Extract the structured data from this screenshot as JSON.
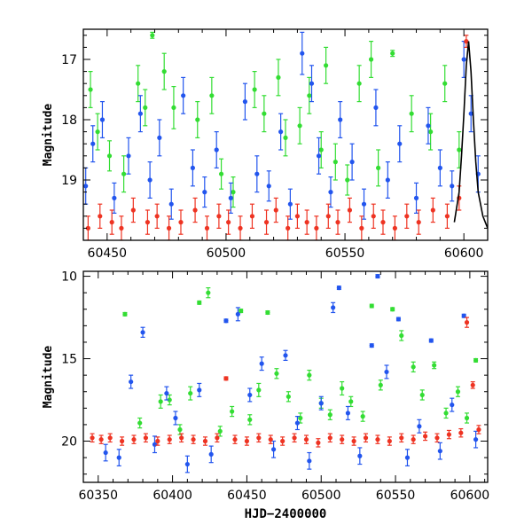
{
  "chart_data": [
    {
      "type": "scatter",
      "title": "",
      "xlabel": "",
      "ylabel": "Magnitude",
      "xlim": [
        60440,
        60610
      ],
      "ylim": [
        20.0,
        16.5
      ],
      "y_inverted": true,
      "grid": false,
      "legend": "none",
      "xticks": [
        60450,
        60500,
        60550,
        60600
      ],
      "yticks": [
        17,
        18,
        19
      ],
      "series": [
        {
          "color": "#33dd33",
          "x": [
            60443,
            60446,
            60451,
            60457,
            60463,
            60466,
            60469,
            60474,
            60478,
            60488,
            60494,
            60498,
            60503,
            60512,
            60516,
            60522,
            60525,
            60531,
            60535,
            60540,
            60542,
            60546,
            60551,
            60556,
            60561,
            60564,
            60570,
            60578,
            60586,
            60592,
            60598
          ],
          "y": [
            17.5,
            18.2,
            18.6,
            18.9,
            17.4,
            17.8,
            16.6,
            17.2,
            17.8,
            18.0,
            17.6,
            18.9,
            19.2,
            17.5,
            17.9,
            17.3,
            18.3,
            18.1,
            17.6,
            18.5,
            17.1,
            18.7,
            19.0,
            17.4,
            17.0,
            18.8,
            16.9,
            17.9,
            18.2,
            17.4,
            18.5
          ],
          "err": [
            0.3,
            0.3,
            0.25,
            0.3,
            0.3,
            0.3,
            0.05,
            0.3,
            0.35,
            0.3,
            0.3,
            0.25,
            0.25,
            0.3,
            0.3,
            0.3,
            0.3,
            0.3,
            0.3,
            0.3,
            0.3,
            0.3,
            0.25,
            0.3,
            0.3,
            0.3,
            0.05,
            0.3,
            0.3,
            0.3,
            0.3
          ]
        },
        {
          "color": "#2255ee",
          "x": [
            60441,
            60444,
            60448,
            60453,
            60459,
            60464,
            60468,
            60472,
            60477,
            60482,
            60486,
            60491,
            60496,
            60502,
            60508,
            60513,
            60518,
            60523,
            60527,
            60532,
            60536,
            60539,
            60544,
            60548,
            60553,
            60558,
            60563,
            60568,
            60573,
            60580,
            60585,
            60590,
            60595,
            60600,
            60603,
            60606
          ],
          "y": [
            19.1,
            18.4,
            18.0,
            19.3,
            18.6,
            17.9,
            19.0,
            18.3,
            19.4,
            17.6,
            18.8,
            19.2,
            18.5,
            19.3,
            17.7,
            18.9,
            19.1,
            18.2,
            19.4,
            16.9,
            17.4,
            18.6,
            19.2,
            18.0,
            18.7,
            19.4,
            17.8,
            19.0,
            18.4,
            19.3,
            18.1,
            18.8,
            19.1,
            17.0,
            17.9,
            18.9
          ],
          "err": [
            0.3,
            0.3,
            0.3,
            0.25,
            0.3,
            0.3,
            0.3,
            0.3,
            0.25,
            0.3,
            0.3,
            0.25,
            0.3,
            0.25,
            0.3,
            0.3,
            0.25,
            0.3,
            0.25,
            0.35,
            0.3,
            0.3,
            0.25,
            0.3,
            0.3,
            0.25,
            0.3,
            0.3,
            0.3,
            0.25,
            0.3,
            0.3,
            0.25,
            0.3,
            0.3,
            0.3
          ]
        },
        {
          "color": "#ee3322",
          "x": [
            60442,
            60447,
            60452,
            60456,
            60461,
            60467,
            60471,
            60476,
            60481,
            60487,
            60492,
            60497,
            60501,
            60506,
            60511,
            60517,
            60521,
            60526,
            60530,
            60534,
            60538,
            60543,
            60547,
            60552,
            60557,
            60562,
            60566,
            60571,
            60576,
            60581,
            60587,
            60593,
            60598,
            60601
          ],
          "y": [
            19.8,
            19.6,
            19.7,
            19.8,
            19.5,
            19.7,
            19.6,
            19.8,
            19.7,
            19.5,
            19.8,
            19.6,
            19.7,
            19.8,
            19.6,
            19.7,
            19.5,
            19.8,
            19.6,
            19.7,
            19.8,
            19.6,
            19.7,
            19.5,
            19.8,
            19.6,
            19.7,
            19.8,
            19.6,
            19.7,
            19.5,
            19.6,
            19.3,
            16.7
          ],
          "err": [
            0.2,
            0.2,
            0.2,
            0.2,
            0.2,
            0.2,
            0.2,
            0.2,
            0.2,
            0.2,
            0.2,
            0.2,
            0.2,
            0.2,
            0.2,
            0.2,
            0.2,
            0.2,
            0.2,
            0.2,
            0.2,
            0.2,
            0.2,
            0.2,
            0.2,
            0.2,
            0.2,
            0.2,
            0.2,
            0.2,
            0.2,
            0.2,
            0.2,
            0.1
          ]
        }
      ],
      "model_curve": {
        "color": "#000000",
        "x": [
          60596,
          60598,
          60599,
          60600,
          60601,
          60602,
          60603,
          60604,
          60605,
          60606,
          60608,
          60610
        ],
        "y": [
          19.7,
          19.2,
          18.6,
          17.9,
          17.1,
          16.7,
          17.2,
          18.0,
          18.7,
          19.2,
          19.6,
          19.8
        ]
      }
    },
    {
      "type": "scatter",
      "title": "",
      "xlabel": "HJD−2400000",
      "ylabel": "Magnitude",
      "xlim": [
        60340,
        60612
      ],
      "ylim": [
        22.5,
        9.7
      ],
      "y_inverted": true,
      "grid": false,
      "legend": "none",
      "xticks": [
        60350,
        60400,
        60450,
        60500,
        60550,
        60600
      ],
      "yticks": [
        10,
        15,
        20
      ],
      "series": [
        {
          "color": "#33dd33",
          "x": [
            60368,
            60378,
            60392,
            60398,
            60405,
            60412,
            60418,
            60424,
            60432,
            60440,
            60446,
            60452,
            60458,
            60464,
            60470,
            60478,
            60486,
            60492,
            60500,
            60506,
            60514,
            60520,
            60528,
            60534,
            60540,
            60548,
            60554,
            60562,
            60568,
            60576,
            60584,
            60592,
            60598,
            60604
          ],
          "y": [
            12.3,
            18.9,
            17.6,
            17.5,
            19.3,
            17.1,
            11.6,
            11.0,
            19.4,
            18.2,
            12.1,
            18.7,
            16.9,
            12.2,
            15.9,
            17.3,
            18.6,
            16.0,
            17.7,
            18.4,
            16.8,
            17.6,
            18.5,
            11.8,
            16.6,
            12.0,
            13.6,
            15.5,
            17.2,
            15.4,
            18.3,
            17.0,
            18.6,
            15.1
          ],
          "err": [
            0.1,
            0.3,
            0.4,
            0.3,
            0.3,
            0.4,
            0.1,
            0.3,
            0.3,
            0.3,
            0.1,
            0.3,
            0.4,
            0.1,
            0.3,
            0.3,
            0.3,
            0.3,
            0.3,
            0.3,
            0.4,
            0.3,
            0.3,
            0.1,
            0.3,
            0.1,
            0.3,
            0.3,
            0.3,
            0.2,
            0.3,
            0.3,
            0.3,
            0.1
          ]
        },
        {
          "color": "#2255ee",
          "x": [
            60355,
            60364,
            60372,
            60380,
            60388,
            60396,
            60402,
            60410,
            60418,
            60426,
            60436,
            60444,
            60452,
            60460,
            60468,
            60476,
            60484,
            60492,
            60500,
            60508,
            60512,
            60518,
            60526,
            60534,
            60538,
            60544,
            60552,
            60558,
            60566,
            60574,
            60580,
            60588,
            60596,
            60604
          ],
          "y": [
            20.7,
            21.0,
            16.4,
            13.4,
            20.2,
            17.1,
            18.6,
            21.4,
            16.9,
            20.8,
            12.7,
            12.3,
            17.2,
            15.3,
            20.5,
            14.8,
            18.9,
            21.2,
            17.7,
            11.9,
            10.7,
            18.3,
            20.9,
            14.2,
            10.0,
            15.8,
            12.6,
            21.0,
            19.1,
            13.9,
            20.6,
            17.8,
            12.4,
            19.9
          ],
          "err": [
            0.5,
            0.5,
            0.4,
            0.3,
            0.5,
            0.4,
            0.4,
            0.5,
            0.4,
            0.5,
            0.1,
            0.4,
            0.4,
            0.4,
            0.5,
            0.3,
            0.4,
            0.5,
            0.4,
            0.3,
            0.1,
            0.4,
            0.5,
            0.1,
            0.1,
            0.4,
            0.1,
            0.5,
            0.4,
            0.1,
            0.5,
            0.4,
            0.1,
            0.5
          ]
        },
        {
          "color": "#ee3322",
          "x": [
            60346,
            60352,
            60358,
            60366,
            60374,
            60382,
            60390,
            60398,
            60406,
            60414,
            60422,
            60430,
            60436,
            60442,
            60450,
            60458,
            60466,
            60474,
            60482,
            60490,
            60498,
            60506,
            60514,
            60522,
            60530,
            60538,
            60546,
            60554,
            60562,
            60570,
            60578,
            60586,
            60594,
            60598,
            60602,
            60606
          ],
          "y": [
            19.8,
            19.9,
            19.8,
            20.0,
            19.9,
            19.8,
            20.0,
            19.9,
            19.8,
            19.9,
            20.0,
            19.8,
            16.2,
            19.9,
            20.0,
            19.8,
            19.9,
            20.0,
            19.8,
            19.9,
            20.1,
            19.8,
            19.9,
            20.0,
            19.8,
            19.9,
            20.0,
            19.8,
            19.9,
            19.7,
            19.8,
            19.6,
            19.5,
            12.8,
            16.6,
            19.3
          ],
          "err": [
            0.25,
            0.25,
            0.25,
            0.25,
            0.25,
            0.25,
            0.25,
            0.25,
            0.25,
            0.25,
            0.25,
            0.25,
            0.1,
            0.25,
            0.25,
            0.25,
            0.25,
            0.25,
            0.25,
            0.25,
            0.25,
            0.25,
            0.25,
            0.25,
            0.25,
            0.25,
            0.25,
            0.25,
            0.25,
            0.25,
            0.25,
            0.25,
            0.25,
            0.3,
            0.2,
            0.25
          ]
        }
      ]
    }
  ]
}
